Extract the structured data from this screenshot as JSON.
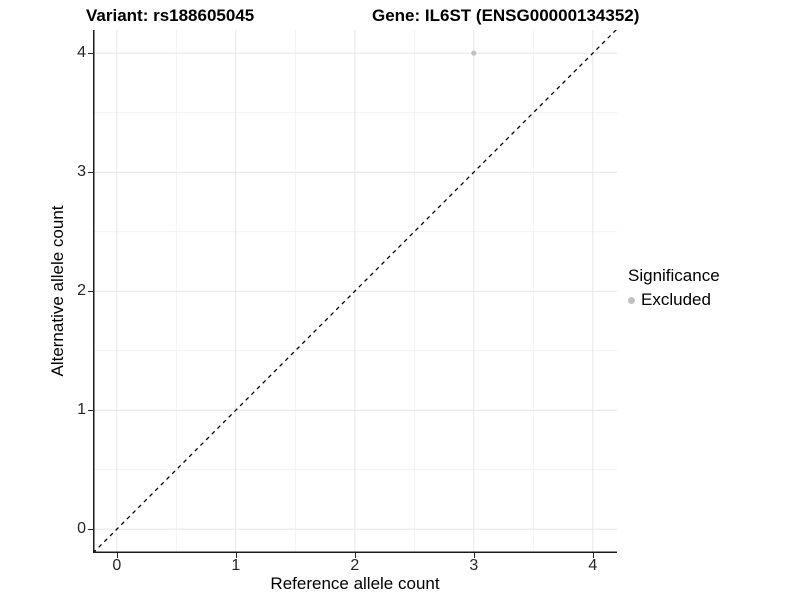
{
  "header": {
    "variant_title": "Variant: rs188605045",
    "gene_title": "Gene: IL6ST (ENSG00000134352)"
  },
  "legend": {
    "title": "Significance",
    "items": [
      {
        "label": "Excluded",
        "color": "#c0c0c0",
        "marker": "dot-icon"
      }
    ]
  },
  "chart_data": {
    "type": "scatter",
    "title_left": "Variant: rs188605045",
    "title_right": "Gene: IL6ST (ENSG00000134352)",
    "xlabel": "Reference allele count",
    "ylabel": "Alternative allele count",
    "xlim": [
      -0.2,
      4.2
    ],
    "ylim": [
      -0.2,
      4.2
    ],
    "x_ticks": [
      0,
      1,
      2,
      3,
      4
    ],
    "y_ticks": [
      0,
      1,
      2,
      3,
      4
    ],
    "x_minor": [
      0.5,
      1.5,
      2.5,
      3.5
    ],
    "y_minor": [
      0.5,
      1.5,
      2.5,
      3.5
    ],
    "grid": true,
    "legend_position": "right",
    "series": [
      {
        "name": "Excluded",
        "color": "#c0c0c0",
        "points": [
          {
            "x": 3,
            "y": 4
          }
        ]
      }
    ],
    "reference_line": {
      "type": "identity",
      "equation": "y = x",
      "style": "dashed",
      "color": "#000000"
    }
  },
  "colors": {
    "background": "#ffffff",
    "grid_major": "#e6e6e6",
    "grid_minor": "#f0f0f0",
    "axis_line": "#1a1a1a",
    "tick_text": "#262626",
    "point": "#c0c0c0"
  }
}
